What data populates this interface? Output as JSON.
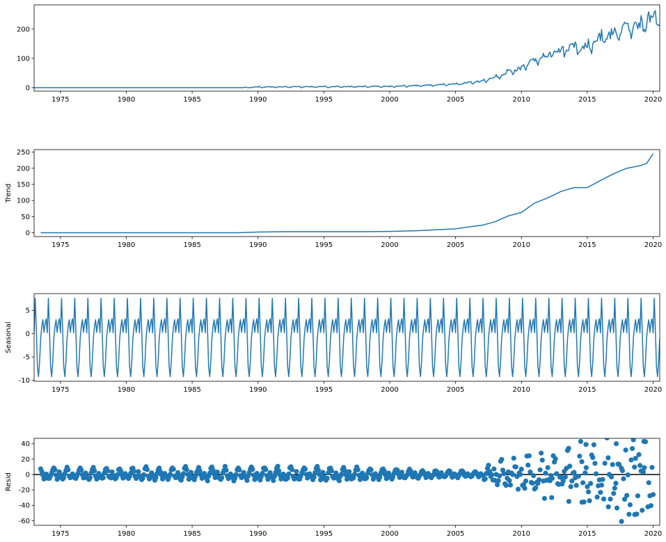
{
  "chart_data": [
    {
      "type": "line",
      "ylabel": "",
      "xlim": [
        1973.0,
        2020.5
      ],
      "ylim": [
        -12,
        283
      ],
      "x_ticks": [
        1975,
        1980,
        1985,
        1990,
        1995,
        2000,
        2005,
        2010,
        2015,
        2020
      ],
      "y_ticks": [
        0,
        100,
        200
      ],
      "series": [
        {
          "color": "#1f77b4",
          "sampling": "monthly",
          "x_start": 1973.0,
          "x_end": 2020.5,
          "trend_points": [
            [
              1973,
              0
            ],
            [
              1988.9,
              0
            ],
            [
              1990,
              2
            ],
            [
              1995,
              3
            ],
            [
              2000,
              4
            ],
            [
              2003,
              8
            ],
            [
              2005,
              12
            ],
            [
              2007,
              22
            ],
            [
              2008,
              35
            ],
            [
              2009,
              55
            ],
            [
              2010,
              65
            ],
            [
              2011,
              92
            ],
            [
              2012,
              108
            ],
            [
              2013,
              125
            ],
            [
              2014,
              140
            ],
            [
              2015,
              140
            ],
            [
              2016,
              165
            ],
            [
              2017,
              185
            ],
            [
              2018,
              205
            ],
            [
              2019,
              210
            ],
            [
              2020,
              240
            ],
            [
              2020.5,
              248
            ]
          ],
          "seasonal_amplitude": 7.5,
          "noise_amplitude_points": [
            [
              1973,
              0
            ],
            [
              1988.9,
              0
            ],
            [
              1989,
              2
            ],
            [
              2005,
              3
            ],
            [
              2008,
              10
            ],
            [
              2010,
              18
            ],
            [
              2013,
              25
            ],
            [
              2016,
              30
            ],
            [
              2019,
              35
            ],
            [
              2020.5,
              35
            ]
          ],
          "final_value": 210
        }
      ]
    },
    {
      "type": "line",
      "ylabel": "Trend",
      "xlim": [
        1973.0,
        2020.5
      ],
      "ylim": [
        -12,
        258
      ],
      "x_ticks": [
        1975,
        1980,
        1985,
        1990,
        1995,
        2000,
        2005,
        2010,
        2015,
        2020
      ],
      "y_ticks": [
        0,
        50,
        100,
        150,
        200,
        250
      ],
      "series": [
        {
          "color": "#1f77b4",
          "points": [
            [
              1973.5,
              0
            ],
            [
              1988.5,
              0
            ],
            [
              1990,
              2
            ],
            [
              1992,
              3
            ],
            [
              1995,
              3
            ],
            [
              1998,
              3
            ],
            [
              2000,
              4
            ],
            [
              2002,
              6
            ],
            [
              2003,
              8
            ],
            [
              2005,
              12
            ],
            [
              2006,
              18
            ],
            [
              2007,
              23
            ],
            [
              2008,
              34
            ],
            [
              2009,
              52
            ],
            [
              2010,
              63
            ],
            [
              2011,
              92
            ],
            [
              2012,
              108
            ],
            [
              2013,
              128
            ],
            [
              2014,
              140
            ],
            [
              2015,
              140
            ],
            [
              2016,
              162
            ],
            [
              2017,
              183
            ],
            [
              2018,
              200
            ],
            [
              2019,
              208
            ],
            [
              2019.5,
              215
            ],
            [
              2020,
              245
            ]
          ]
        }
      ]
    },
    {
      "type": "line",
      "ylabel": "Seasonal",
      "xlim": [
        1973.0,
        2020.5
      ],
      "ylim": [
        -10.2,
        8.6
      ],
      "x_ticks": [
        1975,
        1980,
        1985,
        1990,
        1995,
        2000,
        2005,
        2010,
        2015,
        2020
      ],
      "y_ticks": [
        -10,
        -5,
        0,
        5
      ],
      "series": [
        {
          "color": "#1f77b4",
          "sampling": "monthly",
          "x_start": 1973.0,
          "x_end": 2020.5,
          "period_months": 12,
          "monthly_pattern": [
            0.2,
            7.6,
            1.0,
            -7.0,
            -9.2,
            -6.0,
            -1.0,
            1.5,
            3.0,
            0.3,
            2.2,
            3.2
          ]
        }
      ]
    },
    {
      "type": "scatter",
      "ylabel": "Resid",
      "xlim": [
        1973.0,
        2020.5
      ],
      "ylim": [
        -66,
        47
      ],
      "x_ticks": [
        1975,
        1980,
        1985,
        1990,
        1995,
        2000,
        2005,
        2010,
        2015,
        2020
      ],
      "y_ticks": [
        -60,
        -40,
        -20,
        0,
        20,
        40
      ],
      "baseline": 0,
      "series": [
        {
          "color": "#1f77b4",
          "sampling": "monthly",
          "x_start": 1973.5,
          "x_end": 2020.0,
          "early_pattern": [
            8,
            5,
            -1,
            -5,
            -3,
            2,
            -2,
            -4,
            -6,
            -3,
            1,
            6
          ],
          "spread_points": [
            [
              1973.5,
              1.0
            ],
            [
              1995,
              1.2
            ],
            [
              2005,
              0.6
            ],
            [
              2007,
              0.5
            ],
            [
              2008,
              1.6
            ],
            [
              2010,
              2.5
            ],
            [
              2012,
              3.5
            ],
            [
              2015,
              4.5
            ],
            [
              2018,
              6
            ],
            [
              2020,
              6
            ]
          ],
          "highlights": [
            [
              2014.9,
              39
            ],
            [
              2017.2,
              40
            ],
            [
              2019.3,
              43
            ],
            [
              2017.6,
              -61
            ],
            [
              2018.6,
              -52
            ],
            [
              2016.6,
              -42
            ],
            [
              2019.6,
              -42
            ],
            [
              2013.6,
              -35
            ],
            [
              2014.6,
              -36
            ],
            [
              2012.3,
              -30
            ]
          ]
        }
      ]
    }
  ]
}
